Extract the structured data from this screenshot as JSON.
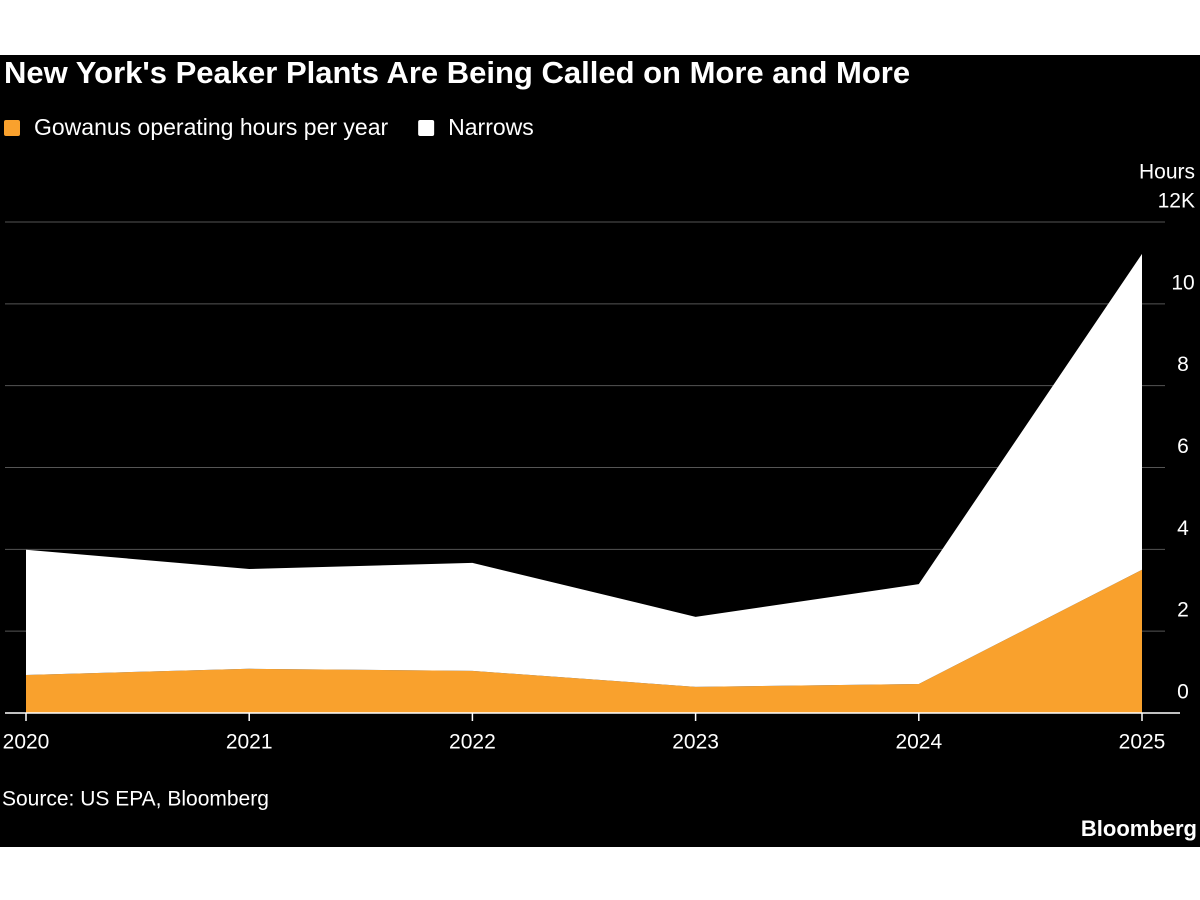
{
  "chart_data": {
    "type": "stacked_area",
    "title": "New York's Peaker Plants Are Being Called on More and More",
    "source": "Source: US EPA, Bloomberg",
    "brand": "Bloomberg",
    "y_axis_label": "Hours",
    "categories": [
      "2020",
      "2021",
      "2022",
      "2023",
      "2024",
      "2025"
    ],
    "series": [
      {
        "name": "Gowanus operating hours per year",
        "color": "#f9a12d",
        "values": [
          0.93,
          1.08,
          1.03,
          0.64,
          0.71,
          3.5
        ]
      },
      {
        "name": "Narrows",
        "color": "#ffffff",
        "values": [
          3.06,
          2.44,
          2.64,
          1.71,
          2.44,
          7.72
        ]
      }
    ],
    "ylim": [
      0,
      12
    ],
    "yticks": [
      0,
      2,
      4,
      6,
      8,
      10,
      {
        "value": 12,
        "label": "12K"
      }
    ],
    "grid": true,
    "legend": "top-left"
  }
}
